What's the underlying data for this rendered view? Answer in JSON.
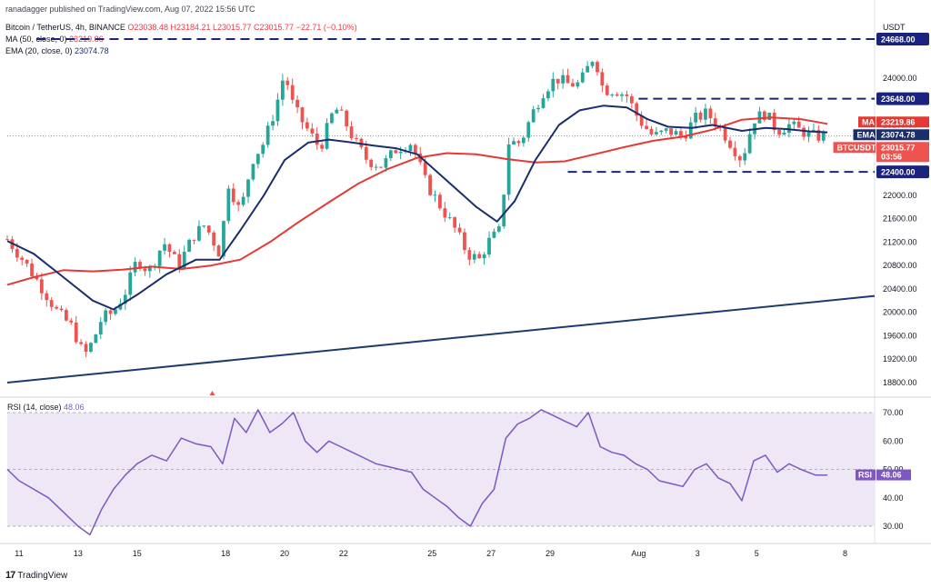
{
  "header": {
    "publisher": "ranadagger published on TradingView.com, Aug 07, 2022 15:56 UTC",
    "symbol": "Bitcoin / TetherUS, 4h, BINANCE",
    "ohlc": "O23038.48 H23184.21 L23015.77 C23015.77 −22.71 (−0.10%)",
    "ma_label": "MA (50, close, 0)",
    "ma_value": "23219.86",
    "ema_label": "EMA (20, close, 0)",
    "ema_value": "23074.78",
    "rsi_label": "RSI (14, close)",
    "rsi_value": "48.06"
  },
  "footer": {
    "brand": "TradingView",
    "logo_icon": "tradingview-logo-icon"
  },
  "colors": {
    "up": "#26a69a",
    "down": "#ef5350",
    "ma": "#e53935",
    "ema": "#1a2e6b",
    "rsi": "#7e57c2",
    "level": "#1a237e",
    "trend": "#1e3a6e",
    "rsi_band": "#ede7f6"
  },
  "chart_data": [
    {
      "type": "candlestick",
      "title": "Bitcoin / TetherUS, 4h, BINANCE",
      "currency": "USDT",
      "y_ticks": [
        24000,
        23600,
        23200,
        22800,
        22400,
        22000,
        21600,
        21200,
        20800,
        20400,
        20000,
        19600,
        19200,
        18800
      ],
      "ylim": [
        18700,
        24850
      ],
      "x_tick_labels": [
        "11",
        "13",
        "15",
        "18",
        "20",
        "22",
        "25",
        "27",
        "29",
        "Aug",
        "3",
        "5",
        "8"
      ],
      "x_tick_days": [
        11,
        13,
        15,
        18,
        20,
        22,
        25,
        27,
        29,
        32,
        34,
        36,
        39
      ],
      "x_range_days": [
        10.6,
        40.0
      ],
      "close_path": [
        [
          10.6,
          21250
        ],
        [
          11.2,
          20850
        ],
        [
          11.8,
          20400
        ],
        [
          12.3,
          20000
        ],
        [
          12.8,
          19750
        ],
        [
          13.2,
          19250
        ],
        [
          13.5,
          19500
        ],
        [
          13.8,
          19900
        ],
        [
          14.2,
          20000
        ],
        [
          14.6,
          20350
        ],
        [
          15.0,
          20900
        ],
        [
          15.4,
          20700
        ],
        [
          15.9,
          21200
        ],
        [
          16.4,
          20800
        ],
        [
          16.9,
          21300
        ],
        [
          17.3,
          21500
        ],
        [
          17.8,
          21000
        ],
        [
          18.1,
          22200
        ],
        [
          18.5,
          21700
        ],
        [
          18.9,
          22600
        ],
        [
          19.3,
          22900
        ],
        [
          19.7,
          23500
        ],
        [
          20.0,
          24100
        ],
        [
          20.3,
          23500
        ],
        [
          20.8,
          23100
        ],
        [
          21.2,
          22800
        ],
        [
          21.7,
          23500
        ],
        [
          22.0,
          23300
        ],
        [
          22.4,
          22900
        ],
        [
          22.8,
          22600
        ],
        [
          23.3,
          22500
        ],
        [
          23.8,
          22800
        ],
        [
          24.3,
          22900
        ],
        [
          24.8,
          22200
        ],
        [
          25.3,
          21800
        ],
        [
          25.8,
          21400
        ],
        [
          26.2,
          21000
        ],
        [
          26.6,
          20900
        ],
        [
          26.9,
          21200
        ],
        [
          27.3,
          21400
        ],
        [
          27.6,
          22900
        ],
        [
          28.0,
          22900
        ],
        [
          28.4,
          23400
        ],
        [
          28.8,
          23800
        ],
        [
          29.2,
          24000
        ],
        [
          29.6,
          23900
        ],
        [
          30.0,
          23900
        ],
        [
          30.5,
          24400
        ],
        [
          30.8,
          23800
        ],
        [
          31.2,
          23800
        ],
        [
          31.6,
          23700
        ],
        [
          32.0,
          23300
        ],
        [
          32.5,
          23000
        ],
        [
          33.0,
          23100
        ],
        [
          33.5,
          23000
        ],
        [
          33.9,
          23300
        ],
        [
          34.3,
          23400
        ],
        [
          34.7,
          23200
        ],
        [
          35.1,
          22900
        ],
        [
          35.5,
          22600
        ],
        [
          35.9,
          23300
        ],
        [
          36.3,
          23400
        ],
        [
          36.7,
          23100
        ],
        [
          37.1,
          23200
        ],
        [
          37.5,
          23100
        ],
        [
          38.0,
          23000
        ],
        [
          38.4,
          23016
        ]
      ],
      "ma50_path": [
        [
          10.6,
          20470
        ],
        [
          11.5,
          20600
        ],
        [
          12.5,
          20720
        ],
        [
          13.5,
          20700
        ],
        [
          14.5,
          20730
        ],
        [
          15.5,
          20780
        ],
        [
          16.5,
          20740
        ],
        [
          17.5,
          20800
        ],
        [
          18.5,
          20900
        ],
        [
          19.5,
          21200
        ],
        [
          20.5,
          21550
        ],
        [
          21.5,
          21880
        ],
        [
          22.5,
          22200
        ],
        [
          23.5,
          22450
        ],
        [
          24.5,
          22640
        ],
        [
          25.5,
          22720
        ],
        [
          26.5,
          22700
        ],
        [
          27.5,
          22620
        ],
        [
          28.5,
          22560
        ],
        [
          29.5,
          22580
        ],
        [
          30.5,
          22700
        ],
        [
          31.5,
          22820
        ],
        [
          32.5,
          22930
        ],
        [
          33.5,
          23000
        ],
        [
          34.5,
          23120
        ],
        [
          35.5,
          23290
        ],
        [
          36.5,
          23330
        ],
        [
          37.5,
          23300
        ],
        [
          38.4,
          23220
        ]
      ],
      "ema20_path": [
        [
          10.6,
          21220
        ],
        [
          11.5,
          21000
        ],
        [
          12.5,
          20600
        ],
        [
          13.5,
          20200
        ],
        [
          14.2,
          20050
        ],
        [
          15.0,
          20300
        ],
        [
          16.0,
          20650
        ],
        [
          17.0,
          20900
        ],
        [
          17.8,
          20900
        ],
        [
          18.5,
          21400
        ],
        [
          19.3,
          22000
        ],
        [
          20.0,
          22600
        ],
        [
          20.8,
          22900
        ],
        [
          21.5,
          22950
        ],
        [
          22.3,
          22900
        ],
        [
          23.0,
          22850
        ],
        [
          23.8,
          22800
        ],
        [
          24.5,
          22700
        ],
        [
          25.5,
          22250
        ],
        [
          26.5,
          21800
        ],
        [
          27.2,
          21550
        ],
        [
          27.8,
          21900
        ],
        [
          28.5,
          22600
        ],
        [
          29.3,
          23200
        ],
        [
          30.0,
          23450
        ],
        [
          30.8,
          23530
        ],
        [
          31.6,
          23500
        ],
        [
          32.3,
          23300
        ],
        [
          33.0,
          23170
        ],
        [
          33.8,
          23150
        ],
        [
          34.5,
          23200
        ],
        [
          35.5,
          23100
        ],
        [
          36.3,
          23150
        ],
        [
          37.0,
          23130
        ],
        [
          37.8,
          23090
        ],
        [
          38.4,
          23075
        ]
      ],
      "horizontal_levels": [
        {
          "value": 24668,
          "label": "24668.00",
          "x_from": 11.6,
          "x_to": 40.0
        },
        {
          "value": 23648,
          "label": "23648.00",
          "x_from": 32.0,
          "x_to": 40.0
        },
        {
          "value": 22400,
          "label": "22400.00",
          "x_from": 29.6,
          "x_to": 40.0
        }
      ],
      "trendline": [
        [
          10.6,
          18800
        ],
        [
          40.0,
          20280
        ]
      ],
      "price_tags": [
        {
          "label": "MA",
          "value": "23219.86",
          "color": "#e53935"
        },
        {
          "label": "EMA",
          "value": "23074.78",
          "color": "#1a2e6b"
        },
        {
          "label": "BTCUSDT",
          "value": "23015.77",
          "color": "#ef5350",
          "extra": "03:56"
        }
      ]
    },
    {
      "type": "line",
      "title": "RSI (14, close)",
      "y_ticks": [
        70.0,
        60.0,
        50.0,
        40.0,
        30.0
      ],
      "ylim": [
        25,
        73
      ],
      "band": [
        30,
        70
      ],
      "midline": 50,
      "current": "48.06",
      "x": [
        10.6,
        11.0,
        11.5,
        12.0,
        12.5,
        13.0,
        13.4,
        13.8,
        14.2,
        14.6,
        15.0,
        15.5,
        16.0,
        16.5,
        17.0,
        17.5,
        17.9,
        18.3,
        18.7,
        19.1,
        19.5,
        19.9,
        20.3,
        20.7,
        21.1,
        21.5,
        21.9,
        22.3,
        22.7,
        23.1,
        23.5,
        23.9,
        24.3,
        24.7,
        25.1,
        25.5,
        25.9,
        26.3,
        26.7,
        27.1,
        27.5,
        27.9,
        28.3,
        28.7,
        29.1,
        29.5,
        29.9,
        30.3,
        30.7,
        31.1,
        31.5,
        31.9,
        32.3,
        32.7,
        33.1,
        33.5,
        33.9,
        34.3,
        34.7,
        35.1,
        35.5,
        35.9,
        36.3,
        36.7,
        37.1,
        37.5,
        38.0,
        38.4
      ],
      "values": [
        50,
        46,
        43,
        40,
        35,
        30,
        27,
        36,
        43,
        48,
        52,
        55,
        53,
        61,
        59,
        58,
        52,
        68,
        63,
        71,
        63,
        66,
        70,
        60,
        56,
        60,
        58,
        56,
        54,
        52,
        51,
        50,
        49,
        43,
        40,
        37,
        33,
        30,
        38,
        43,
        61,
        66,
        68,
        71,
        69,
        67,
        65,
        70,
        58,
        56,
        55,
        52,
        50,
        46,
        45,
        44,
        50,
        52,
        47,
        45,
        39,
        53,
        55,
        49,
        52,
        50,
        48,
        48
      ]
    }
  ]
}
